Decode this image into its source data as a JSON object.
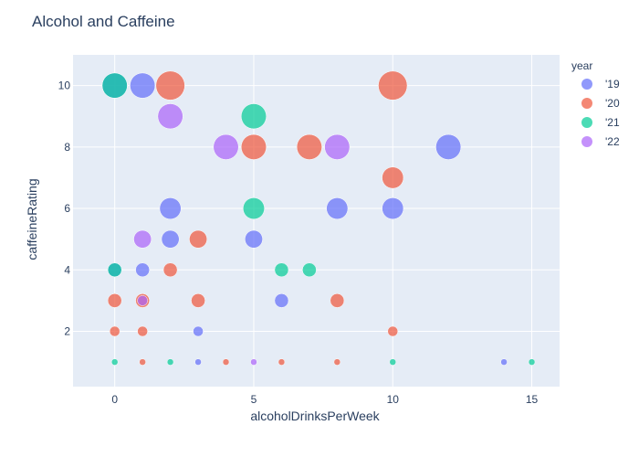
{
  "chart_data": {
    "type": "scatter",
    "title": "Alcohol and Caffeine",
    "xlabel": "alcoholDrinksPerWeek",
    "ylabel": "caffeineRating",
    "xlim": [
      -1.5,
      16
    ],
    "ylim": [
      0.2,
      11
    ],
    "x_ticks": [
      0,
      5,
      10,
      15
    ],
    "y_ticks": [
      2,
      4,
      6,
      8,
      10
    ],
    "grid": true,
    "legend": {
      "title": "year",
      "placement": "right"
    },
    "marker_size_encodes": "point count",
    "series": [
      {
        "name": "'19",
        "color": "#636efa",
        "points": [
          {
            "x": 1,
            "y": 10,
            "size": 6
          },
          {
            "x": 0,
            "y": 10,
            "size": 6
          },
          {
            "x": 12,
            "y": 8,
            "size": 6
          },
          {
            "x": 2,
            "y": 6,
            "size": 5
          },
          {
            "x": 8,
            "y": 6,
            "size": 5
          },
          {
            "x": 10,
            "y": 6,
            "size": 5
          },
          {
            "x": 2,
            "y": 5,
            "size": 4
          },
          {
            "x": 5,
            "y": 5,
            "size": 4
          },
          {
            "x": 1,
            "y": 4,
            "size": 3
          },
          {
            "x": 0,
            "y": 4,
            "size": 3
          },
          {
            "x": 6,
            "y": 3,
            "size": 3
          },
          {
            "x": 3,
            "y": 2,
            "size": 2
          },
          {
            "x": 3,
            "y": 1,
            "size": 1
          },
          {
            "x": 14,
            "y": 1,
            "size": 1
          }
        ]
      },
      {
        "name": "'20",
        "color": "#ef553b",
        "points": [
          {
            "x": 2,
            "y": 10,
            "size": 7
          },
          {
            "x": 10,
            "y": 10,
            "size": 7
          },
          {
            "x": 5,
            "y": 8,
            "size": 6
          },
          {
            "x": 7,
            "y": 8,
            "size": 6
          },
          {
            "x": 10,
            "y": 7,
            "size": 5
          },
          {
            "x": 3,
            "y": 5,
            "size": 4
          },
          {
            "x": 2,
            "y": 4,
            "size": 3
          },
          {
            "x": 0,
            "y": 3,
            "size": 3
          },
          {
            "x": 1,
            "y": 3,
            "size": 3
          },
          {
            "x": 3,
            "y": 3,
            "size": 3
          },
          {
            "x": 8,
            "y": 3,
            "size": 3
          },
          {
            "x": 0,
            "y": 2,
            "size": 2
          },
          {
            "x": 1,
            "y": 2,
            "size": 2
          },
          {
            "x": 10,
            "y": 2,
            "size": 2
          },
          {
            "x": 1,
            "y": 1,
            "size": 1
          },
          {
            "x": 4,
            "y": 1,
            "size": 1
          },
          {
            "x": 6,
            "y": 1,
            "size": 1
          },
          {
            "x": 8,
            "y": 1,
            "size": 1
          }
        ]
      },
      {
        "name": "'21",
        "color": "#00cc96",
        "points": [
          {
            "x": 0,
            "y": 10,
            "size": 6
          },
          {
            "x": 5,
            "y": 9,
            "size": 6
          },
          {
            "x": 5,
            "y": 6,
            "size": 5
          },
          {
            "x": 0,
            "y": 4,
            "size": 3
          },
          {
            "x": 6,
            "y": 4,
            "size": 3
          },
          {
            "x": 7,
            "y": 4,
            "size": 3
          },
          {
            "x": 0,
            "y": 1,
            "size": 1
          },
          {
            "x": 2,
            "y": 1,
            "size": 1
          },
          {
            "x": 10,
            "y": 1,
            "size": 1
          },
          {
            "x": 15,
            "y": 1,
            "size": 1
          }
        ]
      },
      {
        "name": "'22",
        "color": "#ab63fa",
        "points": [
          {
            "x": 2,
            "y": 9,
            "size": 6
          },
          {
            "x": 4,
            "y": 8,
            "size": 6
          },
          {
            "x": 8,
            "y": 8,
            "size": 6
          },
          {
            "x": 1,
            "y": 5,
            "size": 4
          },
          {
            "x": 1,
            "y": 3,
            "size": 2
          },
          {
            "x": 5,
            "y": 1,
            "size": 1
          }
        ]
      }
    ]
  }
}
